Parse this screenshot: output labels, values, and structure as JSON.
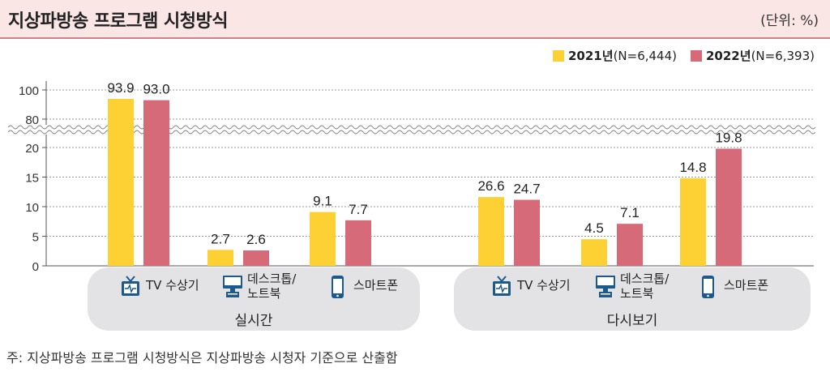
{
  "header": {
    "title": "지상파방송 프로그램 시청방식",
    "unit": "(단위: %)"
  },
  "legend": [
    {
      "year": "2021년",
      "n": "(N=6,444)",
      "color": "#fdd134"
    },
    {
      "year": "2022년",
      "n": "(N=6,393)",
      "color": "#d76a79"
    }
  ],
  "footnote": "주: 지상파방송 프로그램 시청방식은 지상파방송 시청자 기준으로 산출함",
  "colors": {
    "y2021": "#fdd134",
    "y2022": "#d76a79",
    "panel": "#e3e3e5",
    "icon": "#1d5a8c"
  },
  "chart_data": {
    "type": "bar",
    "title": "지상파방송 프로그램 시청방식",
    "ylabel": "",
    "xlabel": "",
    "axis_break": [
      22,
      78
    ],
    "yticks_lower": [
      0,
      5,
      10,
      15,
      20
    ],
    "yticks_upper": [
      80,
      100
    ],
    "groups": [
      {
        "name": "실시간",
        "categories": [
          {
            "label": "TV 수상기",
            "icon": "tv-icon"
          },
          {
            "label": "데스크톱/\n노트북",
            "icon": "desktop-icon"
          },
          {
            "label": "스마트폰",
            "icon": "smartphone-icon"
          }
        ]
      },
      {
        "name": "다시보기",
        "categories": [
          {
            "label": "TV 수상기",
            "icon": "tv-icon"
          },
          {
            "label": "데스크톱/\n노트북",
            "icon": "desktop-icon"
          },
          {
            "label": "스마트폰",
            "icon": "smartphone-icon"
          }
        ]
      }
    ],
    "series": [
      {
        "name": "2021년(N=6,444)",
        "values": [
          93.9,
          2.7,
          9.1,
          26.6,
          4.5,
          14.8
        ]
      },
      {
        "name": "2022년(N=6,393)",
        "values": [
          93.0,
          2.6,
          7.7,
          24.7,
          7.1,
          19.8
        ]
      }
    ],
    "value_labels": [
      [
        "93.9",
        "2.7",
        "9.1",
        "26.6",
        "4.5",
        "14.8"
      ],
      [
        "93.0",
        "2.6",
        "7.7",
        "24.7",
        "7.1",
        "19.8"
      ]
    ],
    "grid": true,
    "legend_position": "top-right"
  }
}
